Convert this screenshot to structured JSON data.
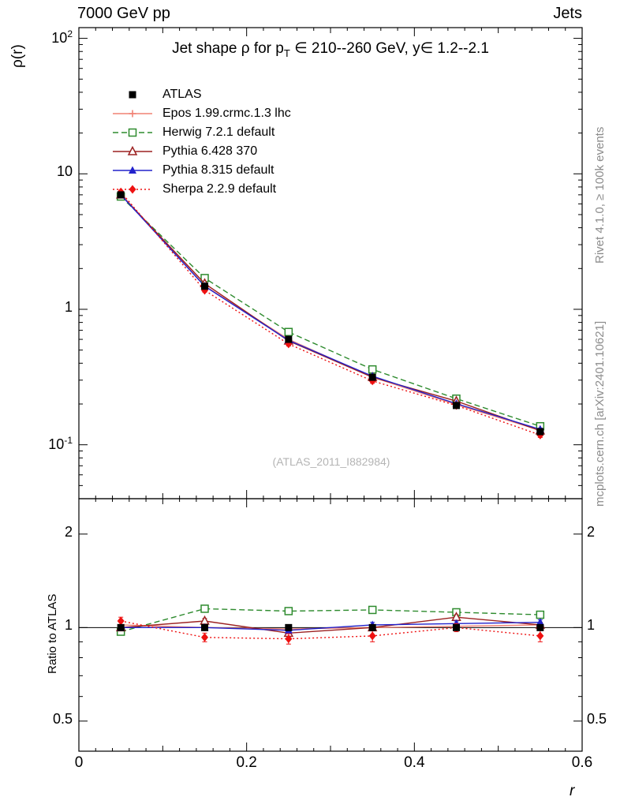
{
  "header": {
    "left": "7000 GeV pp",
    "right": "Jets"
  },
  "side": {
    "rivet": "Rivet 4.1.0, ≥ 100k events",
    "mcplots": "mcplots.cern.ch [arXiv:2401.10621]"
  },
  "watermark": "(ATLAS_2011_I882984)",
  "title": {
    "pre": "Jet shape ρ for p",
    "sub": "T",
    "post": " ∈ 210--260 GeV, y∈ 1.2--2.1"
  },
  "axes": {
    "xlabel": "r",
    "ylabel_top": "ρ(r)",
    "ylabel_bottom": "Ratio to ATLAS"
  },
  "chart_data": {
    "type": "line",
    "title": "Jet shape ρ for p_T ∈ 210--260 GeV, y ∈ 1.2--2.1",
    "xlabel": "r",
    "ylabel": "ρ(r)",
    "ratio_label": "Ratio to ATLAS",
    "x": [
      0.05,
      0.15,
      0.25,
      0.35,
      0.45,
      0.55
    ],
    "xlim": [
      0,
      0.6
    ],
    "ylim_top": [
      0.04,
      120
    ],
    "ylim_ratio": [
      0.4,
      2.6
    ],
    "yscale_top": "log",
    "yscale_ratio": "log",
    "xticks": [
      {
        "v": 0,
        "label": "0"
      },
      {
        "v": 0.2,
        "label": "0.2"
      },
      {
        "v": 0.4,
        "label": "0.4"
      },
      {
        "v": 0.6,
        "label": "0.6"
      }
    ],
    "yticks_top": [
      {
        "v": 100,
        "label": "10^2"
      },
      {
        "v": 10,
        "label": "10"
      },
      {
        "v": 1,
        "label": "1"
      },
      {
        "v": 0.1,
        "label": "10^-1"
      }
    ],
    "yticks_ratio": [
      {
        "v": 2,
        "label": "2"
      },
      {
        "v": 1,
        "label": "1"
      },
      {
        "v": 0.5,
        "label": "0.5"
      }
    ],
    "series": [
      {
        "id": "atlas",
        "name": "ATLAS",
        "color": "#000000",
        "marker": "sq",
        "line": "none",
        "values": [
          7.0,
          1.48,
          0.6,
          0.315,
          0.195,
          0.125
        ],
        "ratio": [
          1,
          1,
          1,
          1,
          1,
          1
        ],
        "ratio_err": [
          0.02,
          0.02,
          0.02,
          0.02,
          0.02,
          0.02
        ]
      },
      {
        "id": "epos",
        "name": "Epos 1.99.crmc.1.3 lhc",
        "color": "#f08274",
        "marker": "plus-o",
        "line": "solid",
        "values": [
          7.1,
          1.49,
          0.6,
          0.316,
          0.198,
          0.128
        ],
        "ratio": [
          1.02,
          1.0,
          0.99,
          1.0,
          1.01,
          1.02
        ],
        "ratio_err": [
          0.02,
          0.02,
          0.02,
          0.02,
          0.02,
          0.02
        ]
      },
      {
        "id": "herwig",
        "name": "Herwig 7.2.1 default",
        "color": "#2e8b2e",
        "marker": "sq-o",
        "line": "dashed",
        "values": [
          6.8,
          1.7,
          0.68,
          0.36,
          0.219,
          0.137
        ],
        "ratio": [
          0.97,
          1.15,
          1.13,
          1.14,
          1.12,
          1.1
        ],
        "ratio_err": [
          0.02,
          0.02,
          0.02,
          0.02,
          0.02,
          0.02
        ]
      },
      {
        "id": "pythia6",
        "name": "Pythia 6.428 370",
        "color": "#9c2121",
        "marker": "tri-o",
        "line": "solid",
        "values": [
          7.0,
          1.55,
          0.585,
          0.315,
          0.21,
          0.127
        ],
        "ratio": [
          1.0,
          1.05,
          0.96,
          1.0,
          1.08,
          1.02
        ],
        "ratio_err": [
          0.02,
          0.02,
          0.02,
          0.02,
          0.02,
          0.02
        ]
      },
      {
        "id": "pythia8",
        "name": "Pythia 8.315 default",
        "color": "#2222cc",
        "marker": "tri",
        "line": "solid",
        "values": [
          7.0,
          1.48,
          0.59,
          0.321,
          0.201,
          0.13
        ],
        "ratio": [
          1.0,
          1.0,
          0.98,
          1.02,
          1.03,
          1.04
        ],
        "ratio_err": [
          0.02,
          0.02,
          0.02,
          0.02,
          0.02,
          0.02
        ]
      },
      {
        "id": "sherpa",
        "name": "Sherpa 2.2.9 default",
        "color": "#ee1111",
        "marker": "dia",
        "line": "dotted",
        "values": [
          7.35,
          1.38,
          0.555,
          0.296,
          0.195,
          0.118
        ],
        "ratio": [
          1.05,
          0.93,
          0.92,
          0.94,
          1.0,
          0.94
        ],
        "ratio_err": [
          0.03,
          0.03,
          0.035,
          0.04,
          0.03,
          0.04
        ]
      }
    ]
  }
}
